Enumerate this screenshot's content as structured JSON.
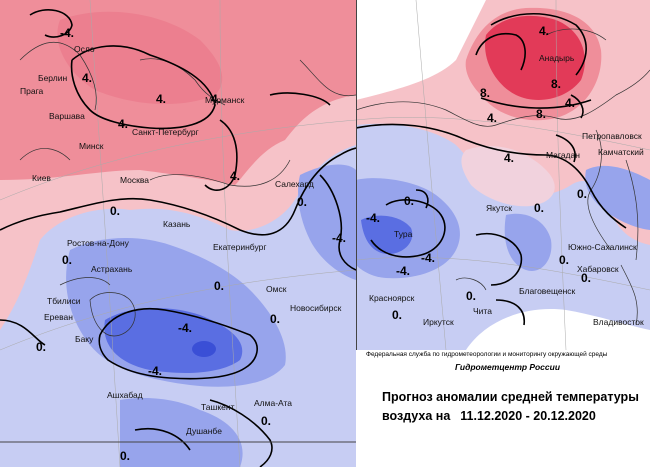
{
  "maps": {
    "west": {
      "cities": [
        "Осло",
        "Берлин",
        "Прага",
        "Варшава",
        "Минск",
        "Киев",
        "Москва",
        "Мурманск",
        "Санкт-Петербург",
        "Салехард",
        "Казань",
        "Ростов-на-Дону",
        "Екатеринбург",
        "Астрахань",
        "Тбилиси",
        "Ереван",
        "Баку",
        "Омск",
        "Новосибирск",
        "Ашхабад",
        "Ташкент",
        "Алма-Ата",
        "Душанбе"
      ],
      "isoline_labels": [
        "-4.",
        "4.",
        "4.",
        "4.",
        "4.",
        "4.",
        "0.",
        "0.",
        "0.",
        "-4.",
        "-4.",
        "-4.",
        "0.",
        "0.",
        "0.",
        "0.",
        "0."
      ]
    },
    "east": {
      "cities": [
        "Анадырь",
        "Петропавловск",
        "Камчатский",
        "Магадан",
        "Якутск",
        "Тура",
        "Южно-Сахалинск",
        "Хабаровск",
        "Благовещенск",
        "Красноярск",
        "Иркутск",
        "Чита",
        "Владивосток"
      ],
      "isoline_labels": [
        "8.",
        "8.",
        "8.",
        "4.",
        "4.",
        "4.",
        "4.",
        "0.",
        "0.",
        "-4.",
        "-4.",
        "-4.",
        "0.",
        "0.",
        "0.",
        "0.",
        "0."
      ]
    }
  },
  "legend": {
    "agency": "Федеральная служба по гидрометеорологии и мониторингу окружающей среды",
    "org": "Гидрометцентр России",
    "title_line1": "Прогноз аномалии средней температуры",
    "title_line2_prefix": "воздуха на",
    "dates": "11.12.2020 - 20.12.2020"
  },
  "colors": {
    "warm_1": "#f6c2c8",
    "warm_2": "#ef8e9a",
    "warm_3": "#e23a58",
    "cold_1": "#c7cdf3",
    "cold_2": "#97a4ec",
    "cold_3": "#5a6ee2",
    "cold_4": "#3a4fd6"
  }
}
